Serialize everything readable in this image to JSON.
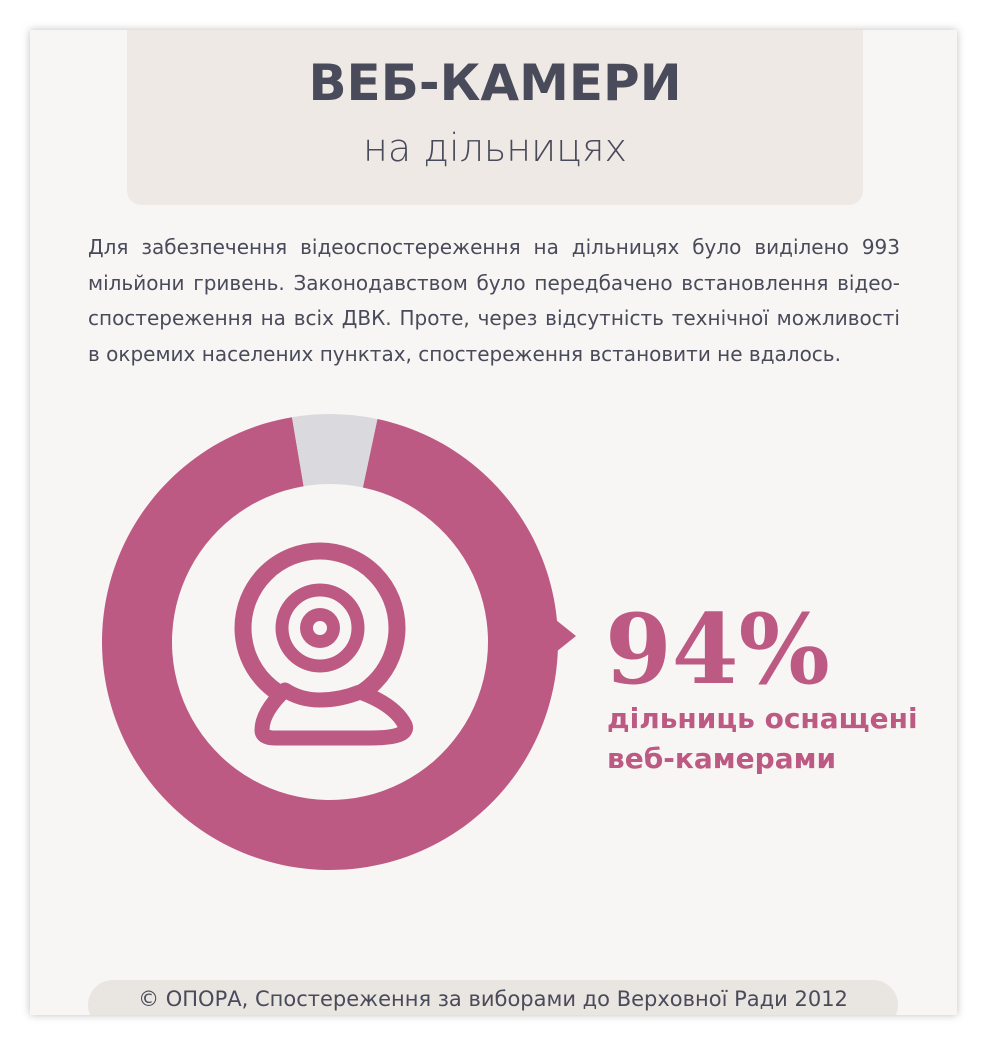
{
  "header": {
    "title": "ВЕБ-КАМЕРИ",
    "subtitle": "на дільницях"
  },
  "intro": "Для забезпечення відеоспостереження на дільницях було виділено 993 мільйони гривень. Законодавством було передбачено встановлення відео-спостереження на всіх ДВК. Проте, через відсутність технічної можливості в окремих населених пунктах, спостереження встановити не вдалось.",
  "chart_data": {
    "type": "donut",
    "values": [
      94,
      6
    ],
    "value_labels": [
      "94%",
      null
    ],
    "colors": [
      "#bd5a83",
      "#dadade"
    ],
    "annotation": [
      "дільниць оснащені",
      "веб-камерами"
    ]
  },
  "footer": "© ОПОРА, Спостереження за виборами до Верховної Ради 2012"
}
